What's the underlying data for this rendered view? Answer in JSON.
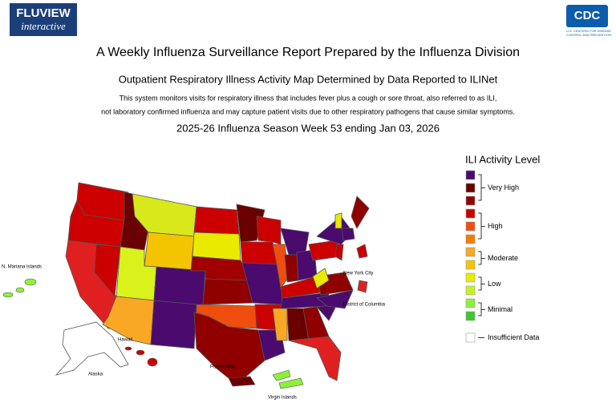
{
  "header": {
    "logo_title": "FLUVIEW",
    "logo_subtitle": "interactive",
    "agency_logo": "CDC",
    "agency_name": [
      "U.S. CENTERS FOR DISEASE",
      "CONTROL AND PREVENTION"
    ]
  },
  "title": "A Weekly Influenza Surveillance Report Prepared by the Influenza Division",
  "subtitle": "Outpatient Respiratory Illness Activity Map Determined by Data Reported to ILINet",
  "description": [
    "This system monitors visits for respiratory illness that includes fever plus a cough or sore throat, also referred to as ILI,",
    "not laboratory confirmed influenza and may capture patient visits due to other respiratory pathogens that cause similar symptoms."
  ],
  "season": "2025-26 Influenza Season Week 53 ending Jan 03, 2026",
  "legend": {
    "title": "ILI Activity Level",
    "levels": [
      {
        "label": "Very High",
        "colors": [
          "#4b0a6e",
          "#6b0000",
          "#900000"
        ]
      },
      {
        "label": "High",
        "colors": [
          "#cc0000",
          "#f04e0e",
          "#f57c00"
        ]
      },
      {
        "label": "Moderate",
        "colors": [
          "#f9a825",
          "#f5c400"
        ]
      },
      {
        "label": "Low",
        "colors": [
          "#eaea00",
          "#c8f020"
        ]
      },
      {
        "label": "Minimal",
        "colors": [
          "#8ef03a",
          "#3cc832"
        ]
      },
      {
        "label": "Insufficient Data",
        "colors": [
          "#ffffff"
        ]
      }
    ]
  },
  "map_labels": {
    "mariana": "N. Mariana Islands",
    "nyc": "New York City",
    "dc": "District of Columbia",
    "hawaii": "Hawaii",
    "alaska": "Alaska",
    "puerto_rico": "Puerto Rico",
    "virgin": "Virgin Islands"
  }
}
